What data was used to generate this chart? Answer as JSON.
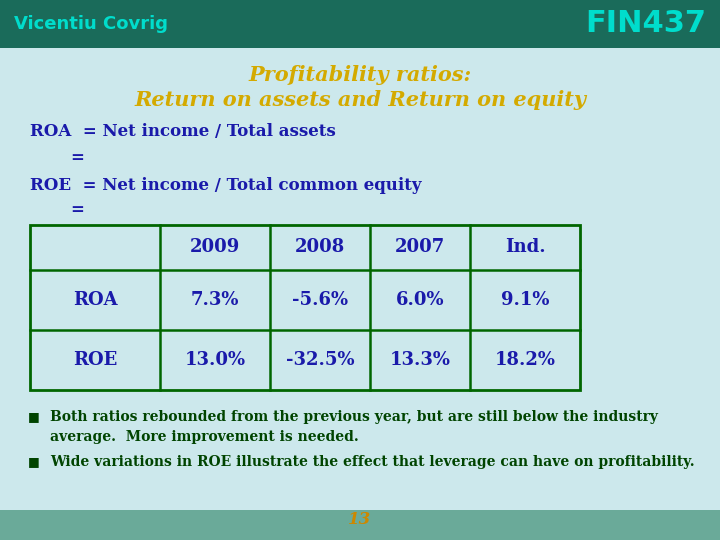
{
  "background_color": "#cce8ec",
  "header_bg": "#1a6b5a",
  "header_left": "Vicentiu Covrig",
  "header_right": "FIN437",
  "header_text_color": "#00ddcc",
  "header_right_color": "#00ddcc",
  "title_line1": "Profitability ratios:",
  "title_line2": "Return on assets and Return on equity",
  "title_color": "#d4aa00",
  "roa_line1": "ROA  = Net income / Total assets",
  "roa_line2": "=",
  "roe_line1": "ROE  = Net income / Total common equity",
  "roe_line2": "=",
  "text_color": "#1a1aaa",
  "table_headers": [
    "",
    "2009",
    "2008",
    "2007",
    "Ind."
  ],
  "table_rows": [
    [
      "ROA",
      "7.3%",
      "-5.6%",
      "6.0%",
      "9.1%"
    ],
    [
      "ROE",
      "13.0%",
      "-32.5%",
      "13.3%",
      "18.2%"
    ]
  ],
  "table_border_color": "#006600",
  "bullet1_line1": "Both ratios rebounded from the previous year, but are still below the industry",
  "bullet1_line2": "average.  More improvement is needed.",
  "bullet2": "Wide variations in ROE illustrate the effect that leverage can have on profitability.",
  "bullet_color": "#004400",
  "page_number": "13",
  "page_number_color": "#cc8800",
  "footer_bg": "#6aaa99"
}
